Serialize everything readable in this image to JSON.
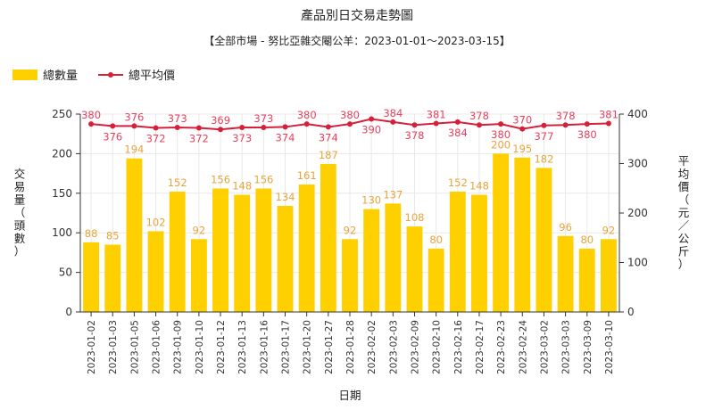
{
  "chart_data": {
    "type": "bar",
    "title": "產品別日交易走勢圖",
    "subtitle": "【全部市場 - 努比亞雜交閹公羊：2023-01-01～2023-03-15】",
    "xlabel": "日期",
    "ylabel": "交易量（頭數）",
    "y2label": "平均價（元／公斤）",
    "ylim": [
      0,
      250
    ],
    "y2lim": [
      0,
      400
    ],
    "yticks": [
      0,
      50,
      100,
      150,
      200,
      250
    ],
    "y2ticks": [
      0,
      100,
      200,
      300,
      400
    ],
    "categories": [
      "2023-01-02",
      "2023-01-03",
      "2023-01-05",
      "2023-01-06",
      "2023-01-09",
      "2023-01-10",
      "2023-01-12",
      "2023-01-13",
      "2023-01-16",
      "2023-01-17",
      "2023-01-20",
      "2023-01-27",
      "2023-01-28",
      "2023-02-02",
      "2023-02-03",
      "2023-02-09",
      "2023-02-10",
      "2023-02-16",
      "2023-02-17",
      "2023-02-23",
      "2023-02-24",
      "2023-03-02",
      "2023-03-03",
      "2023-03-09",
      "2023-03-10"
    ],
    "series": [
      {
        "name": "總數量",
        "type": "bar",
        "axis": "left",
        "color": "#ffd000",
        "label_color": "#e8a43a",
        "values": [
          88,
          85,
          194,
          102,
          152,
          92,
          156,
          148,
          156,
          134,
          161,
          187,
          92,
          130,
          137,
          108,
          80,
          152,
          148,
          200,
          195,
          182,
          96,
          80,
          92
        ]
      },
      {
        "name": "總平均價",
        "type": "line",
        "axis": "right",
        "color": "#d6203a",
        "label_color": "#e8415f",
        "values": [
          380,
          376,
          376,
          372,
          373,
          372,
          369,
          373,
          373,
          374,
          380,
          374,
          380,
          390,
          384,
          378,
          381,
          384,
          378,
          380,
          370,
          377,
          378,
          380,
          381
        ]
      }
    ],
    "legend_position": "top-left",
    "grid": true
  }
}
